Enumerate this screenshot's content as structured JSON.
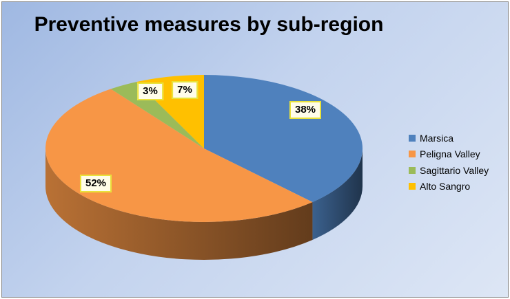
{
  "chart_data": {
    "type": "pie",
    "title": "Preventive measures by sub-region",
    "categories": [
      "Marsica",
      "Peligna Valley",
      "Sagittario Valley",
      "Alto Sangro"
    ],
    "values": [
      38,
      52,
      3,
      7
    ],
    "labels": [
      "38%",
      "52%",
      "3%",
      "7%"
    ],
    "colors": [
      "#4f81bd",
      "#f79646",
      "#9bbb59",
      "#ffc000"
    ],
    "legend_position": "right",
    "style": "3d"
  }
}
